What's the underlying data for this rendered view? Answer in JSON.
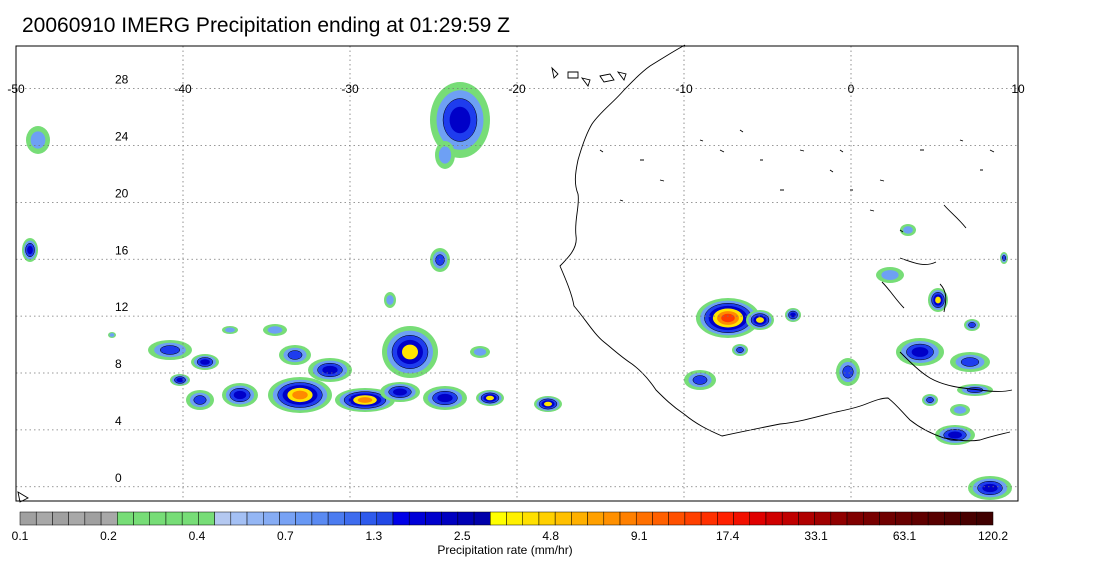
{
  "title": "20060910 IMERG Precipitation ending at 01:29:59 Z",
  "map": {
    "lon_range": [
      -50,
      10
    ],
    "lat_range": [
      -1,
      31
    ],
    "lon_labels": [
      "-50",
      "-40",
      "-30",
      "-20",
      "-10",
      "0",
      "10"
    ],
    "lat_labels": [
      "28",
      "24",
      "20",
      "16",
      "12",
      "8",
      "4",
      "0"
    ],
    "grid": "dotted"
  },
  "colorbar": {
    "colors": [
      "#a0a0a0",
      "#a8a8a8",
      "#a0a0a0",
      "#a8a8a8",
      "#a0a0a0",
      "#a8a8a8",
      "#77dd77",
      "#77dd77",
      "#77dd77",
      "#77dd77",
      "#77dd77",
      "#77dd77",
      "#b4c8f0",
      "#a4c0f4",
      "#94b6f4",
      "#86acf4",
      "#78a2f4",
      "#6898f4",
      "#5a8af2",
      "#4c7cf0",
      "#3e6cee",
      "#2e5aec",
      "#2248e6",
      "#0000e8",
      "#0000d8",
      "#0000cc",
      "#0000c0",
      "#0000b4",
      "#0000aa",
      "#ffff00",
      "#fff000",
      "#ffe000",
      "#ffd000",
      "#ffc000",
      "#ffb000",
      "#ffa000",
      "#ff9000",
      "#ff8000",
      "#ff7000",
      "#ff6000",
      "#ff5000",
      "#ff4000",
      "#ff3000",
      "#ff2000",
      "#f21000",
      "#e00000",
      "#d00000",
      "#c00000",
      "#b00000",
      "#a00000",
      "#900000",
      "#800000",
      "#780000",
      "#700000",
      "#680000",
      "#600000",
      "#580000",
      "#500000",
      "#480000",
      "#400000"
    ],
    "tick_labels": [
      "0.1",
      "0.2",
      "0.4",
      "0.7",
      "1.3",
      "2.5",
      "4.8",
      "9.1",
      "17.4",
      "33.1",
      "63.1",
      "120.2"
    ],
    "label": "Precipitation rate (mm/hr)"
  }
}
